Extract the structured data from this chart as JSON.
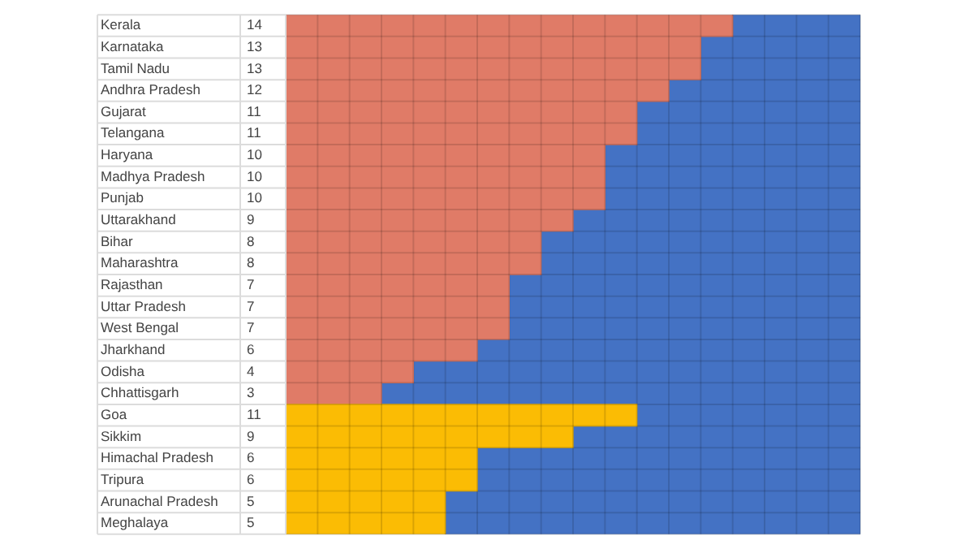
{
  "chart_data": {
    "type": "bar",
    "orientation": "horizontal",
    "stacked": true,
    "categories": [
      "Kerala",
      "Karnataka",
      "Tamil Nadu",
      "Andhra Pradesh",
      "Gujarat",
      "Telangana",
      "Haryana",
      "Madhya Pradesh",
      "Punjab",
      "Uttarakhand",
      "Bihar",
      "Maharashtra",
      "Rajasthan",
      "Uttar Pradesh",
      "West Bengal",
      "Jharkhand",
      "Odisha",
      "Chhattisgarh",
      "Goa",
      "Sikkim",
      "Himachal Pradesh",
      "Tripura",
      "Arunachal Pradesh",
      "Meghalaya"
    ],
    "series": [
      {
        "colors": [
          "#e07b67",
          "#e07b67",
          "#e07b67",
          "#e07b67",
          "#e07b67",
          "#e07b67",
          "#e07b67",
          "#e07b67",
          "#e07b67",
          "#e07b67",
          "#e07b67",
          "#e07b67",
          "#e07b67",
          "#e07b67",
          "#e07b67",
          "#e07b67",
          "#e07b67",
          "#e07b67",
          "#fbbc04",
          "#fbbc04",
          "#fbbc04",
          "#fbbc04",
          "#fbbc04",
          "#fbbc04"
        ],
        "values": [
          14,
          13,
          13,
          12,
          11,
          11,
          10,
          10,
          10,
          9,
          8,
          8,
          7,
          7,
          7,
          6,
          4,
          3,
          11,
          9,
          6,
          6,
          5,
          5
        ],
        "value_labels": [
          "14",
          "13",
          "13",
          "12",
          "11",
          "11",
          "10",
          "10",
          "10",
          "9",
          "8",
          "8",
          "7",
          "7",
          "7",
          "6",
          "4",
          "3",
          "11",
          "9",
          "6",
          "6",
          "5",
          "5"
        ]
      },
      {
        "color": "#4472c4",
        "values": [
          4,
          5,
          5,
          6,
          7,
          7,
          8,
          8,
          8,
          9,
          10,
          10,
          11,
          11,
          11,
          12,
          14,
          15,
          7,
          9,
          12,
          12,
          13,
          13
        ]
      }
    ],
    "xlim": [
      0,
      18
    ],
    "xticks": [
      {
        "value": 0,
        "label": null
      },
      {
        "value": 1,
        "label": null
      },
      {
        "value": 2,
        "label": null
      },
      {
        "value": 3,
        "label": null
      },
      {
        "value": 4,
        "label": null
      },
      {
        "value": 5,
        "label": null
      },
      {
        "value": 6,
        "label": null
      },
      {
        "value": 7,
        "label": null
      },
      {
        "value": 8,
        "label": null
      },
      {
        "value": 9,
        "label": null
      },
      {
        "value": 10,
        "label": null
      },
      {
        "value": 11,
        "label": null
      },
      {
        "value": 12,
        "label": null
      },
      {
        "value": 13,
        "label": null
      },
      {
        "value": 14,
        "label": null
      },
      {
        "value": 15,
        "label": null
      },
      {
        "value": 16,
        "label": null
      },
      {
        "value": 17,
        "label": null
      },
      {
        "value": 18,
        "label": null
      }
    ],
    "tick_labels": "y",
    "grid": true,
    "legend": false
  }
}
